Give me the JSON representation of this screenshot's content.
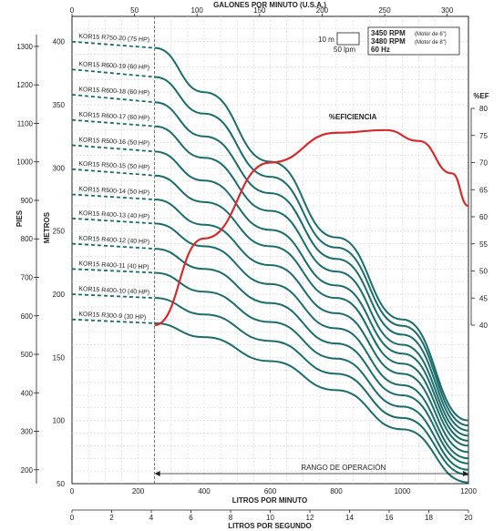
{
  "chart_data": {
    "type": "line",
    "axes": {
      "top_title": "GALONES POR MINUTO (U.S.A.)",
      "top_ticks": [
        "0",
        "50",
        "100",
        "150",
        "200",
        "250",
        "300"
      ],
      "bottom_title": "LITROS POR MINUTO",
      "bottom_ticks": [
        "0",
        "200",
        "400",
        "600",
        "800",
        "1000",
        "1200"
      ],
      "bottom2_title": "LITROS POR SEGUNDO",
      "bottom2_ticks": [
        "0",
        "2",
        "4",
        "6",
        "8",
        "10",
        "12",
        "14",
        "16",
        "18",
        "20"
      ],
      "left_title": "PIES",
      "left_ticks": [
        "200",
        "300",
        "400",
        "500",
        "600",
        "700",
        "800",
        "900",
        "1000",
        "1100",
        "1200",
        "1300"
      ],
      "left2_title": "METROS",
      "left2_ticks": [
        "50",
        "100",
        "150",
        "200",
        "250",
        "300",
        "350",
        "400"
      ],
      "right_title": "%EF",
      "right_ticks": [
        "40",
        "45",
        "50",
        "55",
        "60",
        "65",
        "70",
        "75",
        "80"
      ]
    },
    "x_unit": "LITROS POR MINUTO",
    "y_unit": "METROS",
    "xlim": [
      0,
      1200
    ],
    "ylim": [
      50,
      420
    ],
    "operating_range_label": "RANGO DE OPERACIÓN",
    "operating_range": [
      250,
      1200
    ],
    "legend_box": {
      "scale_m": "10 m",
      "scale_lpm": "50 lpm",
      "rpm1": "3450 RPM",
      "rpm1_note": "(Motor de 6\")",
      "rpm2": "3480 RPM",
      "rpm2_note": "(Motor de 8\")",
      "hz": "60 Hz"
    },
    "series": [
      {
        "name": "KOR15 R750-20 (75 HP)",
        "points": [
          [
            0,
            400
          ],
          [
            250,
            395
          ],
          [
            400,
            360
          ],
          [
            600,
            305
          ],
          [
            800,
            245
          ],
          [
            1000,
            180
          ],
          [
            1200,
            100
          ]
        ]
      },
      {
        "name": "KOR15 R600-19 (60 HP)",
        "points": [
          [
            0,
            378
          ],
          [
            250,
            372
          ],
          [
            400,
            343
          ],
          [
            600,
            293
          ],
          [
            800,
            237
          ],
          [
            1000,
            175
          ],
          [
            1200,
            96
          ]
        ]
      },
      {
        "name": "KOR15 R600-18 (60 HP)",
        "points": [
          [
            0,
            358
          ],
          [
            250,
            352
          ],
          [
            400,
            325
          ],
          [
            600,
            280
          ],
          [
            800,
            228
          ],
          [
            1000,
            168
          ],
          [
            1200,
            92
          ]
        ]
      },
      {
        "name": "KOR15 R600-17 (60 HP)",
        "points": [
          [
            0,
            338
          ],
          [
            250,
            333
          ],
          [
            400,
            308
          ],
          [
            600,
            266
          ],
          [
            800,
            218
          ],
          [
            1000,
            160
          ],
          [
            1200,
            88
          ]
        ]
      },
      {
        "name": "KOR15 R500-16 (50 HP)",
        "points": [
          [
            0,
            318
          ],
          [
            250,
            313
          ],
          [
            400,
            290
          ],
          [
            600,
            251
          ],
          [
            800,
            207
          ],
          [
            1000,
            153
          ],
          [
            1200,
            84
          ]
        ]
      },
      {
        "name": "KOR15 R500-15 (50 HP)",
        "points": [
          [
            0,
            299
          ],
          [
            250,
            294
          ],
          [
            400,
            273
          ],
          [
            600,
            238
          ],
          [
            800,
            197
          ],
          [
            1000,
            145
          ],
          [
            1200,
            80
          ]
        ]
      },
      {
        "name": "KOR15 R500-14 (50 HP)",
        "points": [
          [
            0,
            279
          ],
          [
            250,
            275
          ],
          [
            400,
            255
          ],
          [
            600,
            223
          ],
          [
            800,
            185
          ],
          [
            1000,
            137
          ],
          [
            1200,
            75
          ]
        ]
      },
      {
        "name": "KOR15 R400-13 (40 HP)",
        "points": [
          [
            0,
            260
          ],
          [
            250,
            256
          ],
          [
            400,
            238
          ],
          [
            600,
            208
          ],
          [
            800,
            173
          ],
          [
            1000,
            128
          ],
          [
            1200,
            70
          ]
        ]
      },
      {
        "name": "KOR15 R400-12 (40 HP)",
        "points": [
          [
            0,
            240
          ],
          [
            250,
            236
          ],
          [
            400,
            220
          ],
          [
            600,
            193
          ],
          [
            800,
            161
          ],
          [
            1000,
            120
          ],
          [
            1200,
            66
          ]
        ]
      },
      {
        "name": "KOR15 R400-11 (40 HP)",
        "points": [
          [
            0,
            220
          ],
          [
            250,
            217
          ],
          [
            400,
            202
          ],
          [
            600,
            178
          ],
          [
            800,
            149
          ],
          [
            1000,
            111
          ],
          [
            1200,
            61
          ]
        ]
      },
      {
        "name": "KOR15 R400-10 (40 HP)",
        "points": [
          [
            0,
            200
          ],
          [
            250,
            197
          ],
          [
            400,
            184
          ],
          [
            600,
            163
          ],
          [
            800,
            137
          ],
          [
            1000,
            102
          ],
          [
            1200,
            57
          ]
        ]
      },
      {
        "name": "KOR15 R300-9 (30 HP)",
        "points": [
          [
            0,
            180
          ],
          [
            250,
            177
          ],
          [
            400,
            166
          ],
          [
            600,
            147
          ],
          [
            800,
            124
          ],
          [
            1000,
            93
          ],
          [
            1200,
            51
          ]
        ]
      }
    ],
    "efficiency": {
      "name": "%EFICIENCIA",
      "points": [
        [
          250,
          40
        ],
        [
          400,
          56
        ],
        [
          600,
          70
        ],
        [
          800,
          75.5
        ],
        [
          950,
          76
        ],
        [
          1050,
          74
        ],
        [
          1150,
          68
        ],
        [
          1200,
          62
        ]
      ]
    }
  }
}
